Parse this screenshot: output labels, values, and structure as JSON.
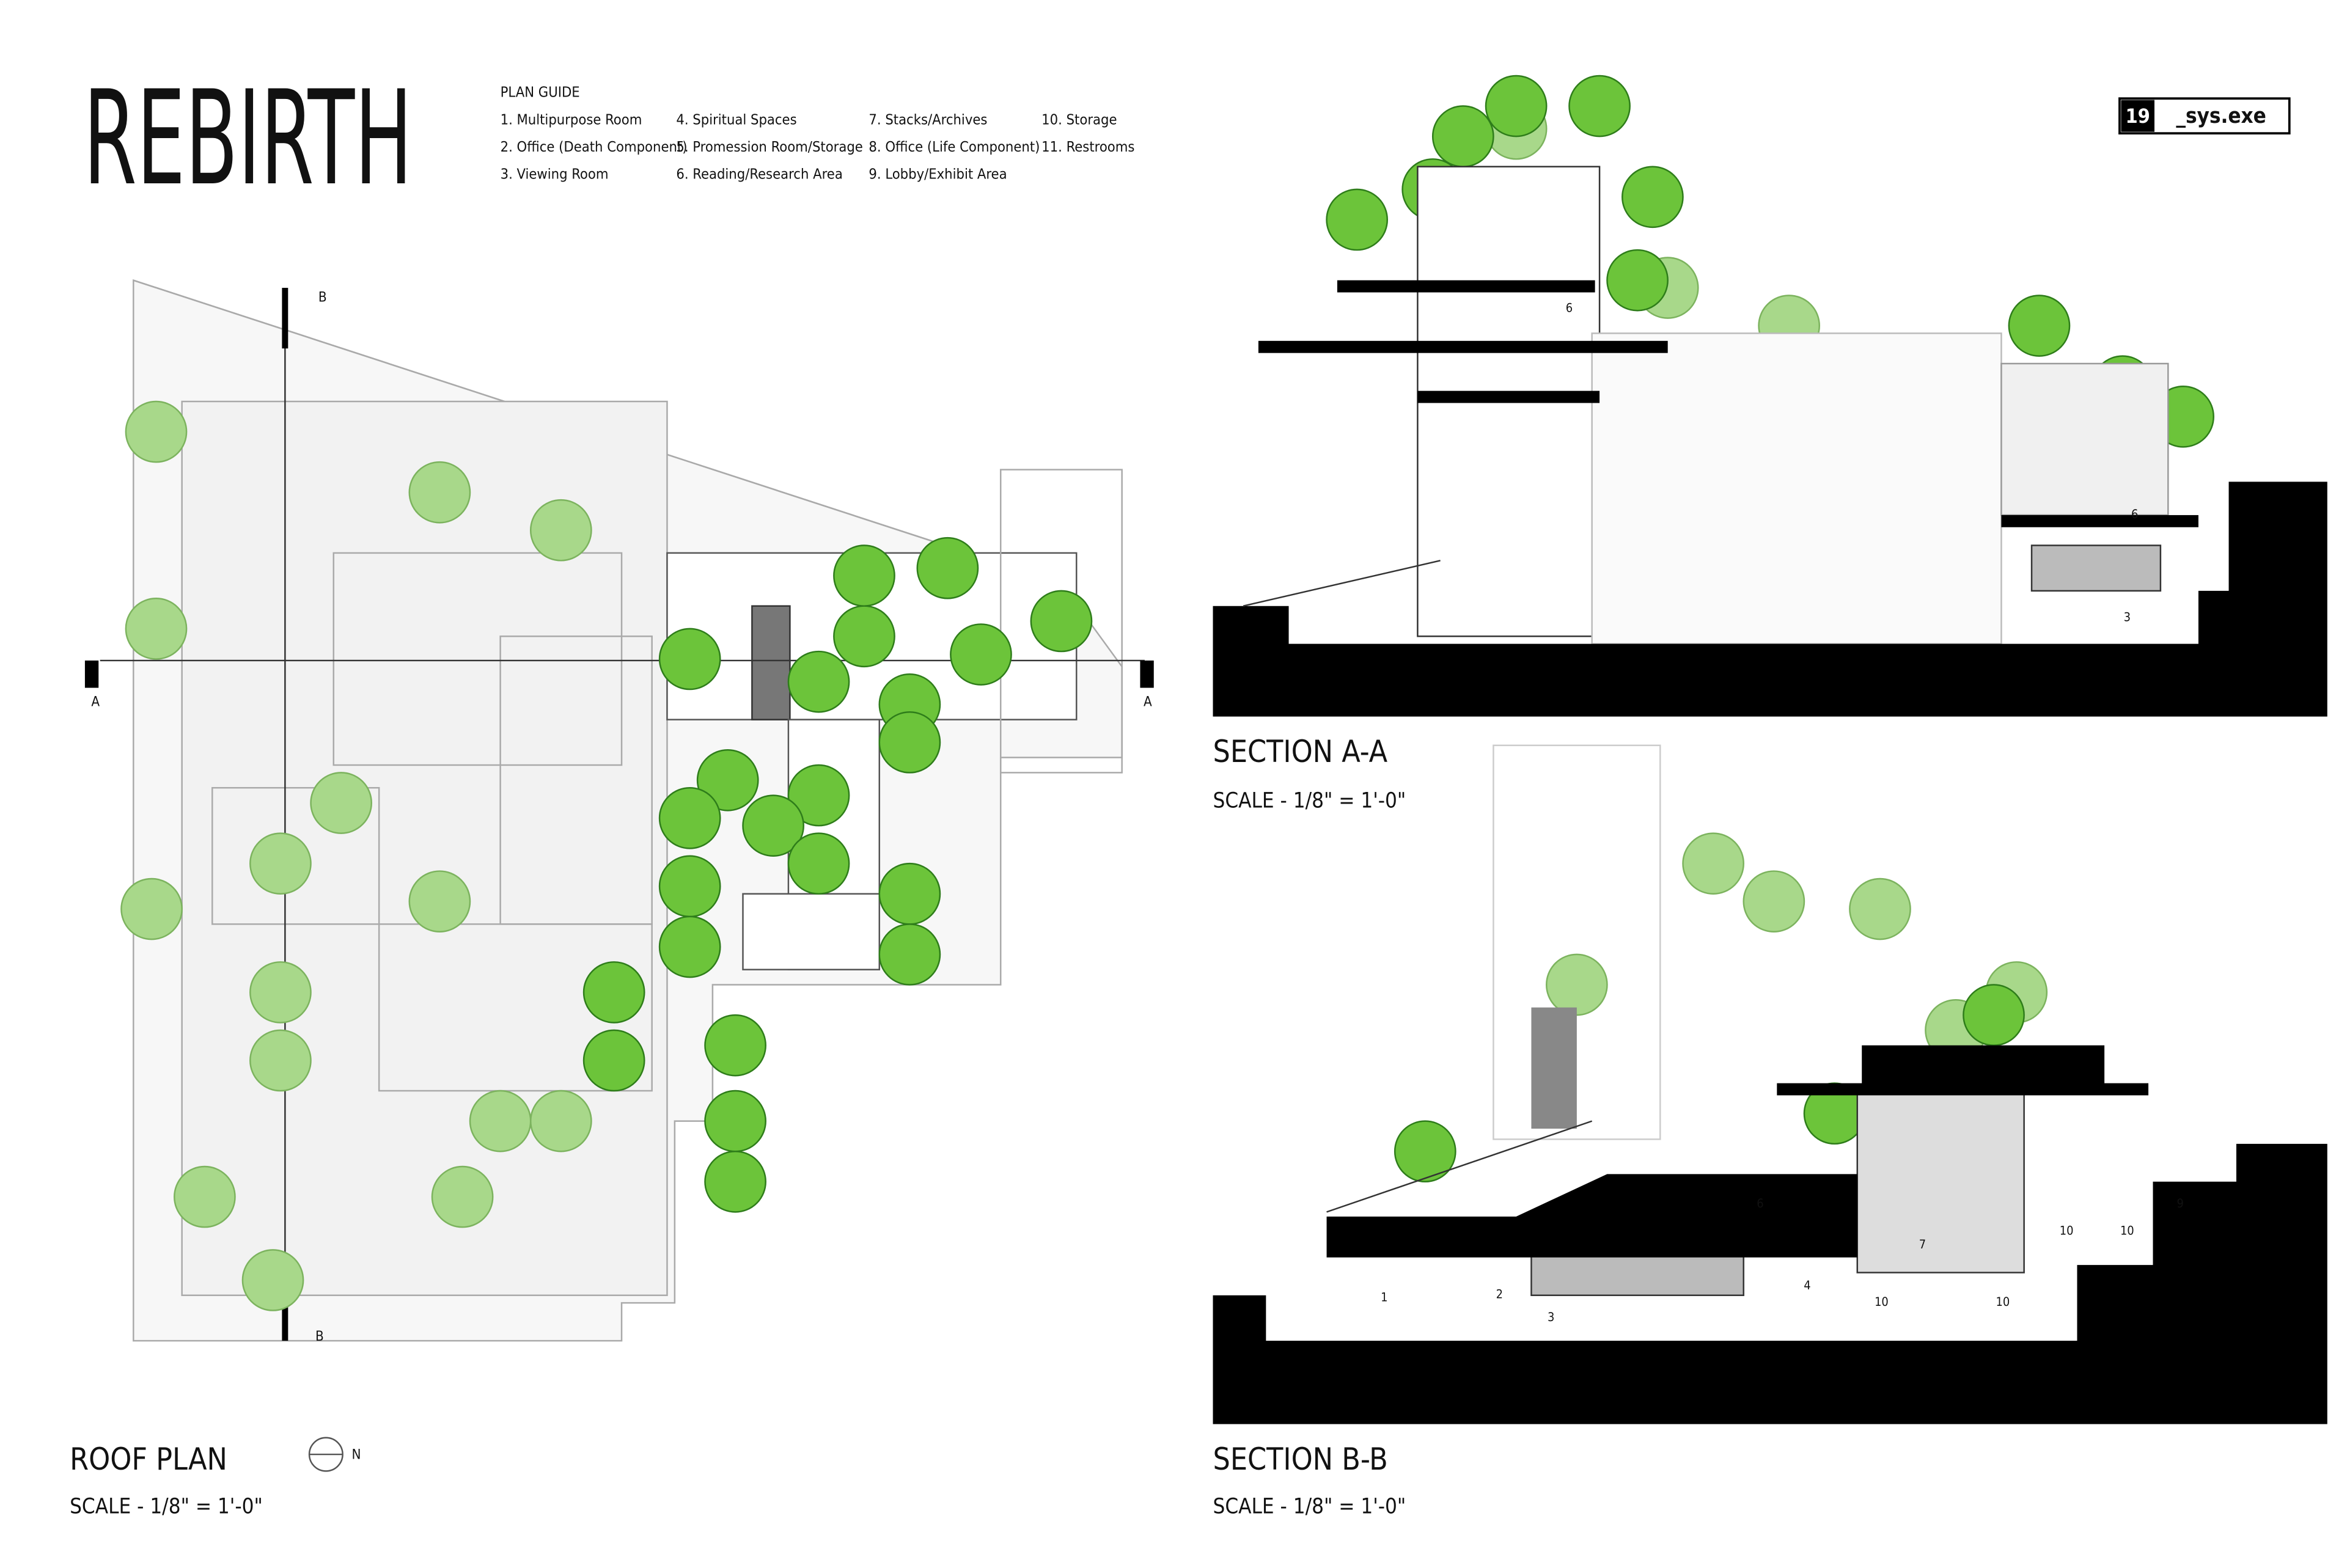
{
  "header": {
    "title": "REBIRTH"
  },
  "plan_guide": {
    "heading": "PLAN GUIDE",
    "items": [
      "1. Multipurpose Room",
      "2. Office (Death Component)",
      "3. Viewing Room",
      "4. Spiritual Spaces",
      "5. Promession Room/Storage",
      "6. Reading/Research Area",
      "7. Stacks/Archives",
      "8. Office (Life Component)",
      "9. Lobby/Exhibit Area",
      "10. Storage",
      "11. Restrooms"
    ]
  },
  "logo": {
    "number": "19",
    "text": "_sys.exe"
  },
  "roof_plan": {
    "title": "ROOF PLAN",
    "scale": "SCALE - 1/8\" = 1'-0\"",
    "markers": [
      "A",
      "A",
      "B",
      "B"
    ],
    "north": "N"
  },
  "section_aa": {
    "title": "SECTION A-A",
    "scale": "SCALE - 1/8\" = 1'-0\"",
    "room_labels": [
      "6",
      "6",
      "3"
    ]
  },
  "section_bb": {
    "title": "SECTION B-B",
    "scale": "SCALE - 1/8\" = 1'-0\"",
    "room_labels": [
      "1",
      "2",
      "3",
      "4",
      "10",
      "10",
      "6",
      "7",
      "10",
      "10",
      "9"
    ]
  }
}
